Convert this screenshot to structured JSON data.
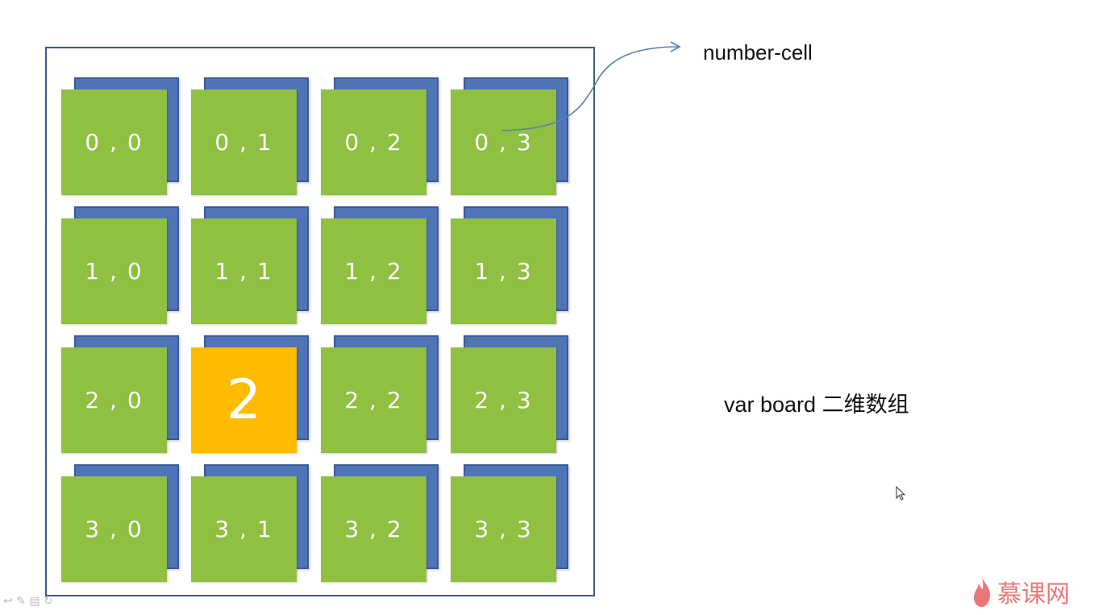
{
  "labels": {
    "number_cell": "number-cell",
    "board": "var board 二维数组"
  },
  "grid": [
    [
      {
        "text": "0 , 0"
      },
      {
        "text": "0 , 1"
      },
      {
        "text": "0 , 2"
      },
      {
        "text": "0 , 3"
      }
    ],
    [
      {
        "text": "1 , 0"
      },
      {
        "text": "1 , 1"
      },
      {
        "text": "1 , 2"
      },
      {
        "text": "1 , 3"
      }
    ],
    [
      {
        "text": "2 , 0"
      },
      {
        "text": "2",
        "number": true
      },
      {
        "text": "2 , 2"
      },
      {
        "text": "2 , 3"
      }
    ],
    [
      {
        "text": "3 , 0"
      },
      {
        "text": "3 , 1"
      },
      {
        "text": "3 , 2"
      },
      {
        "text": "3 , 3"
      }
    ]
  ],
  "colors": {
    "cell_green": "#8fc042",
    "cell_back_blue": "#4f74b8",
    "number_cell_orange": "#ffbb00",
    "board_border": "#3f5a84",
    "arrow": "#5b7fb0"
  },
  "logo": {
    "text": "慕课网",
    "icon": "flame-icon"
  }
}
